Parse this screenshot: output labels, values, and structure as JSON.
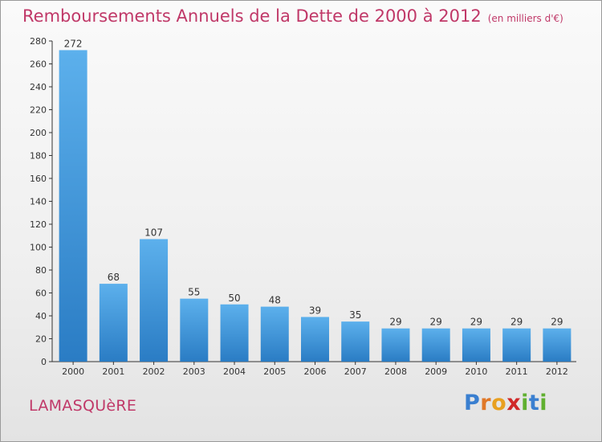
{
  "chart_data": {
    "type": "bar",
    "title": "Remboursements Annuels de la Dette de 2000 à 2012",
    "subtitle": "(en milliers d'€)",
    "categories": [
      "2000",
      "2001",
      "2002",
      "2003",
      "2004",
      "2005",
      "2006",
      "2007",
      "2008",
      "2009",
      "2010",
      "2011",
      "2012"
    ],
    "values": [
      272,
      68,
      107,
      55,
      50,
      48,
      39,
      35,
      29,
      29,
      29,
      29,
      29
    ],
    "data_labels": [
      "272",
      "68",
      "107",
      "55",
      "50",
      "48",
      "39",
      "35",
      "29",
      "29",
      "29",
      "29",
      "29"
    ],
    "ylim": [
      0,
      280
    ],
    "yticks": [
      "0",
      "20",
      "40",
      "60",
      "80",
      "100",
      "120",
      "140",
      "160",
      "180",
      "200",
      "220",
      "240",
      "260",
      "280"
    ],
    "xlabel": "",
    "ylabel": "",
    "grid": false,
    "bar_color": "#4a9fe0"
  },
  "footer": {
    "commune": "LAMASQUèRE",
    "logo_letters": [
      "P",
      "r",
      "o",
      "x",
      "i",
      "t",
      "i"
    ],
    "logo_colors": [
      "#3a7fd0",
      "#e07828",
      "#e8a020",
      "#d02828",
      "#60b030",
      "#3a7fd0",
      "#60b030"
    ]
  }
}
